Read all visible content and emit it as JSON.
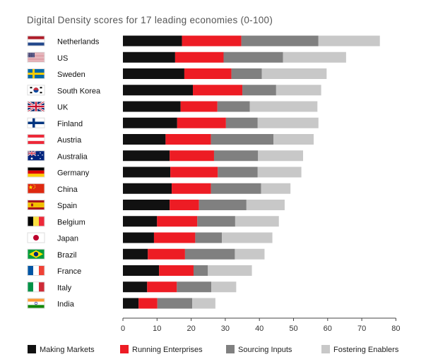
{
  "chart_data": {
    "type": "bar",
    "orientation": "horizontal",
    "stacked": true,
    "title": "Digital Density scores for 17 leading economies (0-100)",
    "xlabel": "",
    "ylabel": "",
    "xlim": [
      0,
      80
    ],
    "xticks": [
      0,
      10,
      20,
      30,
      40,
      50,
      60,
      70,
      80
    ],
    "grid": false,
    "legend_position": "bottom",
    "categories": [
      "Netherlands",
      "US",
      "Sweden",
      "South Korea",
      "UK",
      "Finland",
      "Austria",
      "Australia",
      "Germany",
      "China",
      "Spain",
      "Belgium",
      "Japan",
      "Brazil",
      "France",
      "Italy",
      "India"
    ],
    "series": [
      {
        "name": "Making Markets",
        "color": "#111111",
        "values": [
          17.3,
          15.3,
          18.0,
          20.5,
          16.9,
          15.9,
          12.5,
          13.7,
          13.9,
          14.3,
          13.7,
          10.0,
          9.1,
          7.3,
          10.6,
          7.1,
          4.6
        ]
      },
      {
        "name": "Running Enterprises",
        "color": "#ed1c24",
        "values": [
          17.4,
          14.2,
          13.8,
          14.5,
          10.8,
          14.3,
          13.3,
          13.0,
          13.9,
          11.5,
          8.6,
          11.8,
          12.1,
          10.9,
          10.1,
          8.7,
          5.5
        ]
      },
      {
        "name": "Sourcing Inputs",
        "color": "#808080",
        "values": [
          22.6,
          17.4,
          8.9,
          9.9,
          9.5,
          9.3,
          18.3,
          12.9,
          11.7,
          14.7,
          13.9,
          11.1,
          7.8,
          14.6,
          4.2,
          10.1,
          10.2
        ]
      },
      {
        "name": "Fostering Enablers",
        "color": "#c8c8c8",
        "values": [
          18.0,
          18.5,
          19.0,
          13.2,
          19.8,
          17.8,
          11.8,
          13.2,
          12.8,
          8.6,
          11.2,
          12.8,
          14.8,
          8.7,
          12.9,
          7.3,
          6.8
        ]
      }
    ]
  },
  "flags": [
    "nl-flag",
    "us-flag",
    "se-flag",
    "kr-flag",
    "uk-flag",
    "fi-flag",
    "at-flag",
    "au-flag",
    "de-flag",
    "cn-flag",
    "es-flag",
    "be-flag",
    "jp-flag",
    "br-flag",
    "fr-flag",
    "it-flag",
    "in-flag"
  ]
}
